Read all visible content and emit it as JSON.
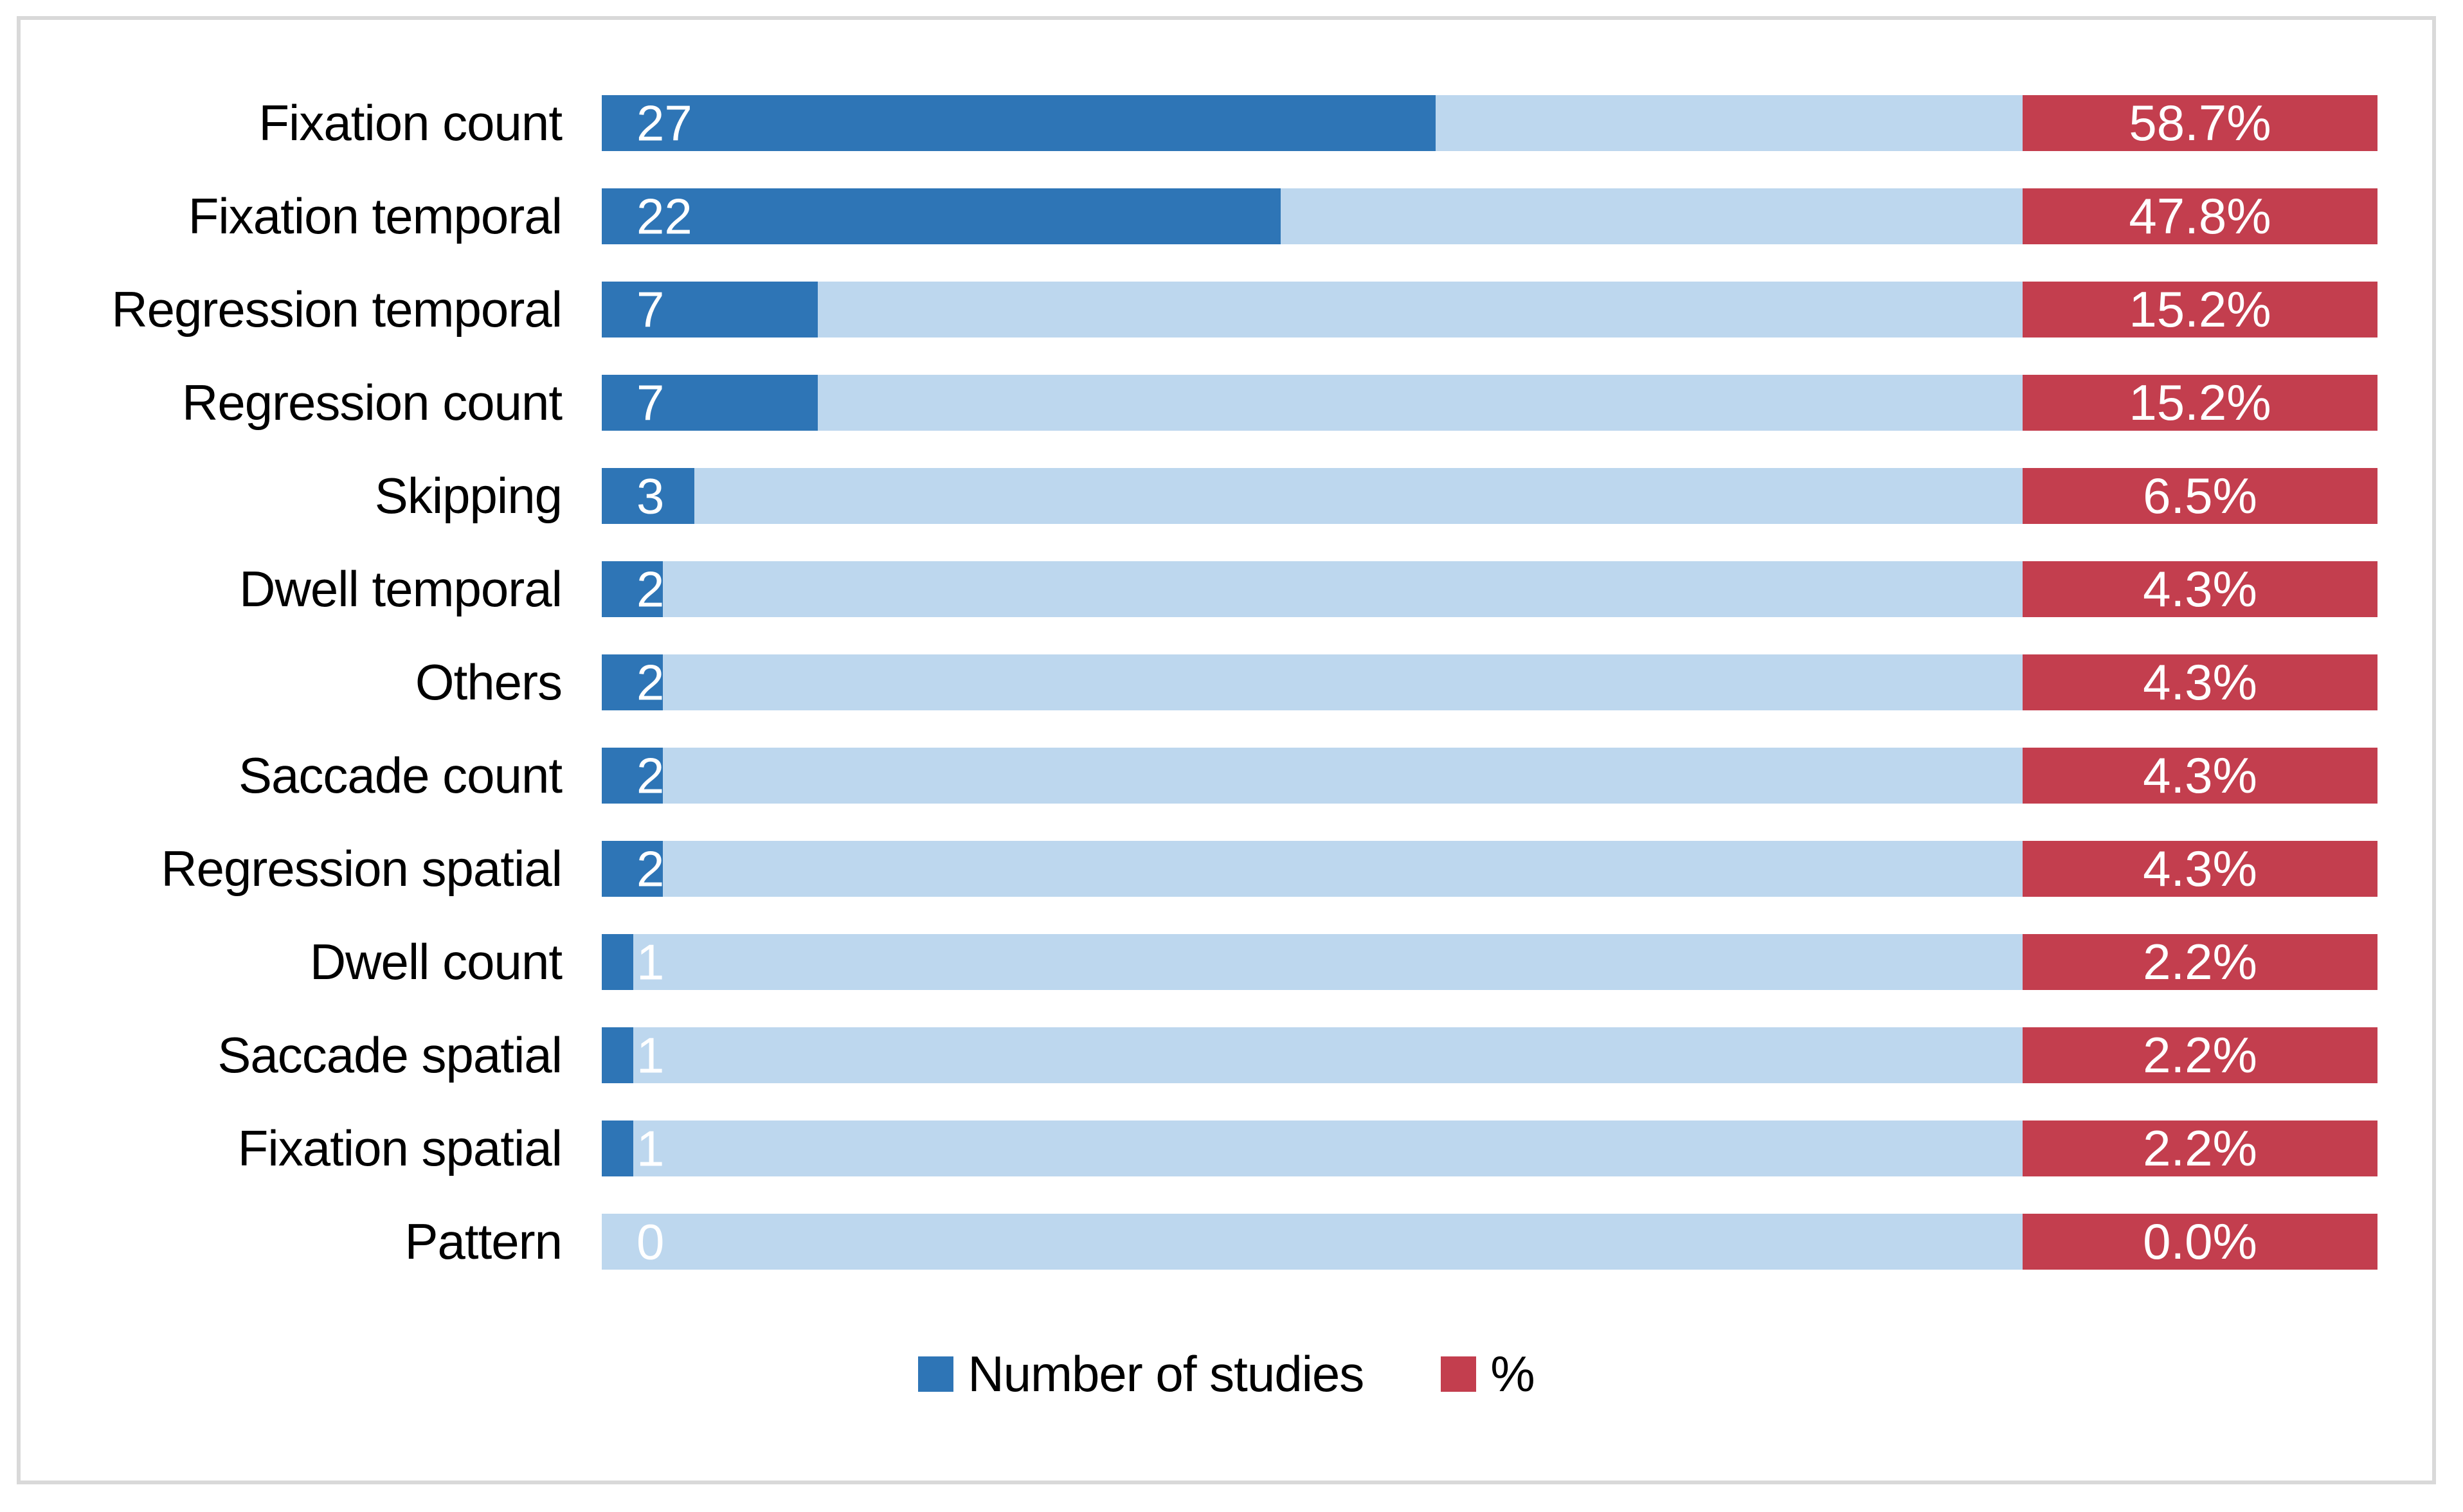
{
  "chart_data": {
    "type": "bar",
    "orientation": "horizontal",
    "categories": [
      "Fixation count",
      "Fixation temporal",
      "Regression temporal",
      "Regression count",
      "Skipping",
      "Dwell temporal",
      "Others",
      "Saccade count",
      "Regression spatial",
      "Dwell count",
      "Saccade spatial",
      "Fixation spatial",
      "Pattern"
    ],
    "series": [
      {
        "name": "Number of studies",
        "color": "#2E75B6",
        "values": [
          27,
          22,
          7,
          7,
          3,
          2,
          2,
          2,
          2,
          1,
          1,
          1,
          0
        ]
      },
      {
        "name": "%",
        "color": "#C33E4E",
        "values": [
          58.7,
          47.8,
          15.2,
          15.2,
          6.5,
          4.3,
          4.3,
          4.3,
          4.3,
          2.2,
          2.2,
          2.2,
          0.0
        ],
        "labels": [
          "58.7%",
          "47.8%",
          "15.2%",
          "15.2%",
          "6.5%",
          "4.3%",
          "4.3%",
          "4.3%",
          "4.3%",
          "2.2%",
          "2.2%",
          "2.2%",
          "0.0%"
        ]
      }
    ],
    "track_color": "#BDD7EE",
    "value_label_color": "#FFFFFF",
    "legend": [
      {
        "label": "Number of studies",
        "color": "#2E75B6"
      },
      {
        "label": "%",
        "color": "#C33E4E"
      }
    ],
    "legend_position": "bottom",
    "gridlines": false
  },
  "frame": {
    "border_color": "#D9D9D9",
    "background_color": "#FFFFFF"
  }
}
